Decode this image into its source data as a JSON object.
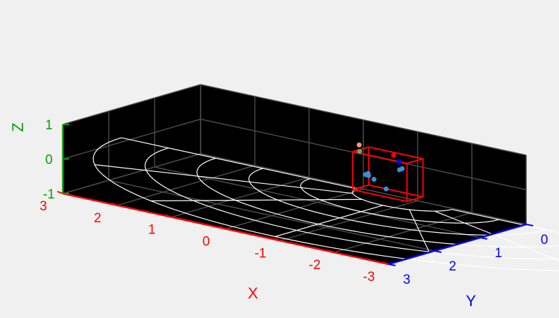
{
  "chart_data": {
    "type": "scatter3d",
    "title": "",
    "background_color": "#000000",
    "figure_color": "#f0f0f0",
    "grid": true,
    "axes": {
      "x": {
        "label": "X",
        "ticks": [
          "3",
          "2",
          "1",
          "0",
          "-1",
          "-2",
          "-3"
        ],
        "color": "#ff0000",
        "range": [
          -3,
          3
        ]
      },
      "y": {
        "label": "Y",
        "ticks": [
          "0",
          "1",
          "2",
          "3"
        ],
        "color": "#0000ff",
        "range": [
          0,
          3
        ]
      },
      "z": {
        "label": "Z",
        "ticks": [
          "1",
          "0",
          "-1"
        ],
        "color": "#00a000",
        "range": [
          -1,
          1
        ]
      }
    },
    "polar_grid": {
      "color": "#ffffff",
      "rings": 6,
      "spokes": 7
    },
    "bounding_box": {
      "color": "#ff0000"
    },
    "points": [
      {
        "x": -0.05,
        "y": 0.15,
        "z": 0.35,
        "color": "#e8a070"
      },
      {
        "x": -0.1,
        "y": 0.2,
        "z": 0.2,
        "color": "#6fa860"
      },
      {
        "x": -0.3,
        "y": 0.25,
        "z": -0.35,
        "color": "#3a8fd8"
      },
      {
        "x": -0.25,
        "y": 0.25,
        "z": -0.4,
        "color": "#3a8fd8"
      },
      {
        "x": -0.35,
        "y": 0.3,
        "z": -0.38,
        "color": "#3a8fd8"
      },
      {
        "x": -0.45,
        "y": 0.3,
        "z": -0.45,
        "color": "#3a8fd8"
      },
      {
        "x": -0.8,
        "y": 0.45,
        "z": -0.55,
        "color": "#3a8fd8"
      },
      {
        "x": -0.75,
        "y": 0.1,
        "z": -0.15,
        "color": "#3a8fd8"
      },
      {
        "x": -0.8,
        "y": 0.1,
        "z": -0.1,
        "color": "#3a8fd8"
      },
      {
        "x": -0.7,
        "y": 0.05,
        "z": 0.05,
        "color": "#0000ff"
      },
      {
        "x": -0.6,
        "y": 0.05,
        "z": 0.2,
        "color": "#ff0000"
      }
    ]
  }
}
